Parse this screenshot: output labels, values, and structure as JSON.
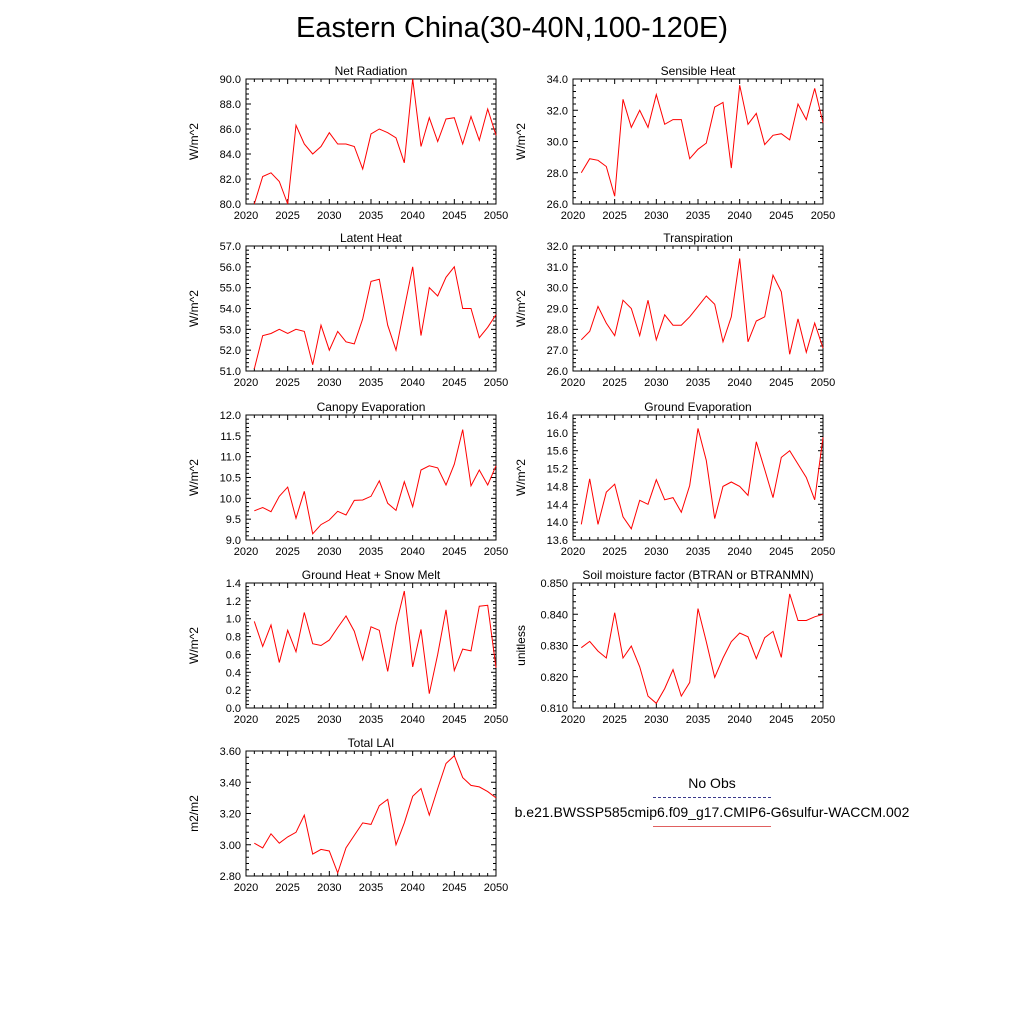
{
  "title": "Eastern China(30-40N,100-120E)",
  "colors": {
    "model_line": "#ff0000",
    "obs_line": "#3a3a8c",
    "axis": "#000000"
  },
  "legend": {
    "obs_label": "No Obs",
    "model_label": "b.e21.BWSSP585cmip6.f09_g17.CMIP6-G6sulfur-WACCM.002"
  },
  "chart_data": [
    {
      "type": "line",
      "title": "Net Radiation",
      "ylabel": "W/m^2",
      "xlim": [
        2020,
        2050
      ],
      "ylim": [
        80,
        90
      ],
      "xticks": [
        "2020",
        "2025",
        "2030",
        "2035",
        "2040",
        "2045",
        "2050"
      ],
      "yticks": [
        "80.0",
        "82.0",
        "84.0",
        "86.0",
        "88.0",
        "90.0"
      ],
      "x": [
        2021,
        2022,
        2023,
        2024,
        2025,
        2026,
        2027,
        2028,
        2029,
        2030,
        2031,
        2032,
        2033,
        2034,
        2035,
        2036,
        2037,
        2038,
        2039,
        2040,
        2041,
        2042,
        2043,
        2044,
        2045,
        2046,
        2047,
        2048,
        2049,
        2050
      ],
      "values": [
        80.0,
        82.2,
        82.5,
        81.8,
        80.0,
        86.3,
        84.8,
        84.0,
        84.6,
        85.7,
        84.8,
        84.8,
        84.6,
        82.8,
        85.6,
        86.0,
        85.7,
        85.3,
        83.3,
        90.0,
        84.6,
        86.9,
        85.0,
        86.8,
        86.9,
        84.8,
        87.0,
        85.1,
        87.6,
        85.5
      ]
    },
    {
      "type": "line",
      "title": "Sensible Heat",
      "ylabel": "W/m^2",
      "xlim": [
        2020,
        2050
      ],
      "ylim": [
        26,
        34
      ],
      "xticks": [
        "2020",
        "2025",
        "2030",
        "2035",
        "2040",
        "2045",
        "2050"
      ],
      "yticks": [
        "26.0",
        "28.0",
        "30.0",
        "32.0",
        "34.0"
      ],
      "x": [
        2021,
        2022,
        2023,
        2024,
        2025,
        2026,
        2027,
        2028,
        2029,
        2030,
        2031,
        2032,
        2033,
        2034,
        2035,
        2036,
        2037,
        2038,
        2039,
        2040,
        2041,
        2042,
        2043,
        2044,
        2045,
        2046,
        2047,
        2048,
        2049,
        2050
      ],
      "values": [
        28.0,
        28.9,
        28.8,
        28.4,
        26.5,
        32.7,
        30.9,
        32.0,
        30.9,
        33.0,
        31.1,
        31.4,
        31.4,
        28.9,
        29.5,
        29.9,
        32.2,
        32.5,
        28.3,
        33.6,
        31.1,
        31.8,
        29.8,
        30.4,
        30.5,
        30.1,
        32.4,
        31.4,
        33.4,
        31.2
      ]
    },
    {
      "type": "line",
      "title": "Latent Heat",
      "ylabel": "W/m^2",
      "xlim": [
        2020,
        2050
      ],
      "ylim": [
        51,
        57
      ],
      "xticks": [
        "2020",
        "2025",
        "2030",
        "2035",
        "2040",
        "2045",
        "2050"
      ],
      "yticks": [
        "51.0",
        "52.0",
        "53.0",
        "54.0",
        "55.0",
        "56.0",
        "57.0"
      ],
      "x": [
        2021,
        2022,
        2023,
        2024,
        2025,
        2026,
        2027,
        2028,
        2029,
        2030,
        2031,
        2032,
        2033,
        2034,
        2035,
        2036,
        2037,
        2038,
        2039,
        2040,
        2041,
        2042,
        2043,
        2044,
        2045,
        2046,
        2047,
        2048,
        2049,
        2050
      ],
      "values": [
        51.1,
        52.7,
        52.8,
        53.0,
        52.8,
        53.0,
        52.9,
        51.3,
        53.2,
        52.0,
        52.9,
        52.4,
        52.3,
        53.5,
        55.3,
        55.4,
        53.2,
        52.0,
        54.0,
        56.0,
        52.7,
        55.0,
        54.6,
        55.5,
        56.0,
        54.0,
        54.0,
        52.6,
        53.1,
        53.7
      ]
    },
    {
      "type": "line",
      "title": "Transpiration",
      "ylabel": "W/m^2",
      "xlim": [
        2020,
        2050
      ],
      "ylim": [
        26,
        32
      ],
      "xticks": [
        "2020",
        "2025",
        "2030",
        "2035",
        "2040",
        "2045",
        "2050"
      ],
      "yticks": [
        "26.0",
        "27.0",
        "28.0",
        "29.0",
        "30.0",
        "31.0",
        "32.0"
      ],
      "x": [
        2021,
        2022,
        2023,
        2024,
        2025,
        2026,
        2027,
        2028,
        2029,
        2030,
        2031,
        2032,
        2033,
        2034,
        2035,
        2036,
        2037,
        2038,
        2039,
        2040,
        2041,
        2042,
        2043,
        2044,
        2045,
        2046,
        2047,
        2048,
        2049,
        2050
      ],
      "values": [
        27.5,
        27.9,
        29.1,
        28.3,
        27.7,
        29.4,
        29.0,
        27.7,
        29.4,
        27.5,
        28.7,
        28.2,
        28.2,
        28.6,
        29.1,
        29.6,
        29.2,
        27.4,
        28.6,
        31.4,
        27.4,
        28.4,
        28.6,
        30.6,
        29.8,
        26.8,
        28.5,
        26.9,
        28.3,
        27.1
      ]
    },
    {
      "type": "line",
      "title": "Canopy Evaporation",
      "ylabel": "W/m^2",
      "xlim": [
        2020,
        2050
      ],
      "ylim": [
        9,
        12
      ],
      "xticks": [
        "2020",
        "2025",
        "2030",
        "2035",
        "2040",
        "2045",
        "2050"
      ],
      "yticks": [
        "9.0",
        "9.5",
        "10.0",
        "10.5",
        "11.0",
        "11.5",
        "12.0"
      ],
      "x": [
        2021,
        2022,
        2023,
        2024,
        2025,
        2026,
        2027,
        2028,
        2029,
        2030,
        2031,
        2032,
        2033,
        2034,
        2035,
        2036,
        2037,
        2038,
        2039,
        2040,
        2041,
        2042,
        2043,
        2044,
        2045,
        2046,
        2047,
        2048,
        2049,
        2050
      ],
      "values": [
        9.7,
        9.78,
        9.68,
        10.05,
        10.27,
        9.52,
        10.17,
        9.15,
        9.37,
        9.48,
        9.69,
        9.6,
        9.95,
        9.96,
        10.05,
        10.42,
        9.88,
        9.71,
        10.4,
        9.8,
        10.68,
        10.78,
        10.73,
        10.32,
        10.82,
        11.65,
        10.3,
        10.68,
        10.32,
        10.78
      ]
    },
    {
      "type": "line",
      "title": "Ground Evaporation",
      "ylabel": "W/m^2",
      "xlim": [
        2020,
        2050
      ],
      "ylim": [
        13.6,
        16.4
      ],
      "xticks": [
        "2020",
        "2025",
        "2030",
        "2035",
        "2040",
        "2045",
        "2050"
      ],
      "yticks": [
        "13.6",
        "14.0",
        "14.4",
        "14.8",
        "15.2",
        "15.6",
        "16.0",
        "16.4"
      ],
      "x": [
        2021,
        2022,
        2023,
        2024,
        2025,
        2026,
        2027,
        2028,
        2029,
        2030,
        2031,
        2032,
        2033,
        2034,
        2035,
        2036,
        2037,
        2038,
        2039,
        2040,
        2041,
        2042,
        2043,
        2044,
        2045,
        2046,
        2047,
        2048,
        2049,
        2050
      ],
      "values": [
        13.95,
        14.97,
        13.95,
        14.67,
        14.85,
        14.12,
        13.85,
        14.49,
        14.4,
        14.95,
        14.5,
        14.55,
        14.22,
        14.82,
        16.1,
        15.38,
        14.08,
        14.8,
        14.9,
        14.8,
        14.6,
        15.8,
        15.18,
        14.55,
        15.45,
        15.6,
        15.3,
        15.0,
        14.5,
        15.9
      ]
    },
    {
      "type": "line",
      "title": "Ground Heat + Snow Melt",
      "ylabel": "W/m^2",
      "xlim": [
        2020,
        2050
      ],
      "ylim": [
        0,
        1.4
      ],
      "xticks": [
        "2020",
        "2025",
        "2030",
        "2035",
        "2040",
        "2045",
        "2050"
      ],
      "yticks": [
        "0.0",
        "0.2",
        "0.4",
        "0.6",
        "0.8",
        "1.0",
        "1.2",
        "1.4"
      ],
      "x": [
        2021,
        2022,
        2023,
        2024,
        2025,
        2026,
        2027,
        2028,
        2029,
        2030,
        2031,
        2032,
        2033,
        2034,
        2035,
        2036,
        2037,
        2038,
        2039,
        2040,
        2041,
        2042,
        2043,
        2044,
        2045,
        2046,
        2047,
        2048,
        2049,
        2050
      ],
      "values": [
        0.97,
        0.69,
        0.93,
        0.51,
        0.87,
        0.63,
        1.07,
        0.72,
        0.7,
        0.76,
        0.9,
        1.03,
        0.86,
        0.54,
        0.91,
        0.87,
        0.41,
        0.93,
        1.31,
        0.46,
        0.88,
        0.16,
        0.6,
        1.1,
        0.42,
        0.66,
        0.64,
        1.14,
        1.15,
        0.45
      ]
    },
    {
      "type": "line",
      "title": "Soil moisture factor (BTRAN or BTRANMN)",
      "ylabel": "unitless",
      "xlim": [
        2020,
        2050
      ],
      "ylim": [
        0.81,
        0.85
      ],
      "xticks": [
        "2020",
        "2025",
        "2030",
        "2035",
        "2040",
        "2045",
        "2050"
      ],
      "yticks": [
        "0.810",
        "0.820",
        "0.830",
        "0.840",
        "0.850"
      ],
      "x": [
        2021,
        2022,
        2023,
        2024,
        2025,
        2026,
        2027,
        2028,
        2029,
        2030,
        2031,
        2032,
        2033,
        2034,
        2035,
        2036,
        2037,
        2038,
        2039,
        2040,
        2041,
        2042,
        2043,
        2044,
        2045,
        2046,
        2047,
        2048,
        2049,
        2050
      ],
      "values": [
        0.8293,
        0.8313,
        0.8282,
        0.826,
        0.8405,
        0.826,
        0.8298,
        0.8232,
        0.8138,
        0.8115,
        0.8162,
        0.8223,
        0.8138,
        0.8182,
        0.8418,
        0.8312,
        0.8198,
        0.826,
        0.8312,
        0.834,
        0.8328,
        0.8258,
        0.8325,
        0.8345,
        0.8262,
        0.8465,
        0.838,
        0.838,
        0.8392,
        0.84
      ]
    },
    {
      "type": "line",
      "title": "Total LAI",
      "ylabel": "m2/m2",
      "xlim": [
        2020,
        2050
      ],
      "ylim": [
        2.8,
        3.6
      ],
      "xticks": [
        "2020",
        "2025",
        "2030",
        "2035",
        "2040",
        "2045",
        "2050"
      ],
      "yticks": [
        "2.80",
        "3.00",
        "3.20",
        "3.40",
        "3.60"
      ],
      "x": [
        2021,
        2022,
        2023,
        2024,
        2025,
        2026,
        2027,
        2028,
        2029,
        2030,
        2031,
        2032,
        2033,
        2034,
        2035,
        2036,
        2037,
        2038,
        2039,
        2040,
        2041,
        2042,
        2043,
        2044,
        2045,
        2046,
        2047,
        2048,
        2049,
        2050
      ],
      "values": [
        3.01,
        2.98,
        3.07,
        3.01,
        3.05,
        3.08,
        3.19,
        2.94,
        2.97,
        2.96,
        2.82,
        2.98,
        3.06,
        3.14,
        3.13,
        3.25,
        3.29,
        3.0,
        3.14,
        3.31,
        3.36,
        3.19,
        3.36,
        3.52,
        3.57,
        3.43,
        3.38,
        3.37,
        3.34,
        3.3
      ]
    }
  ]
}
